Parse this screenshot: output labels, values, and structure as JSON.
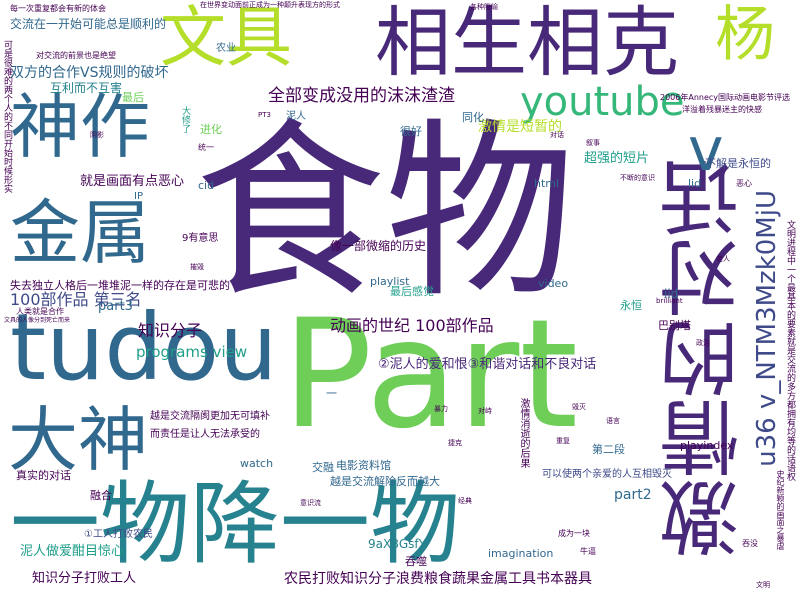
{
  "palette": {
    "background": "#ffffff",
    "dark_purple": "#440154",
    "purple": "#482878",
    "indigo": "#3e4a89",
    "blue": "#31688e",
    "teal": "#26828e",
    "green_teal": "#1f9e89",
    "green": "#35b779",
    "light_green": "#6ece58",
    "yellow_green": "#b5de2b",
    "yellow": "#d8e219"
  },
  "words": {
    "shiwu": "食物",
    "part": "Part",
    "jiqing_de_duihua": "激情的对话",
    "yiwu_xiang_yiwu": "一物降一物",
    "xiangsheng_xiangke": "相生相克",
    "tudou": "tudou",
    "shenzuo": "神作",
    "jinshu": "金属",
    "dashen": "大神",
    "wenju": "文具",
    "yang": "杨",
    "youtube": "youtube",
    "v": "v",
    "u36": "u36 v_NTM3Mzk0MjU",
    "quanbu_bian_cheng": "全部变成没用的沫沫渣渣",
    "jiqing_shi_duanzan": "激情是短暂的",
    "chaoqiang_duanpian": "超强的短片",
    "bujie_yongheng": "不解是永恒的",
    "hezuo_vs_guize": "双方的合作VS规则的破坏",
    "huli_er_buhai": "互利而不互害",
    "jiaoliu_yikaishi": "交流在一开始可能总是顺利的",
    "jiushi_huamian": "就是画面有点恶心",
    "zhishifenzi": "知识分子",
    "baibu_disanming": "100部作品 第三名",
    "part3": "part3",
    "donghua_shiji": "动画的世纪 100部作品",
    "nirenr_aihehen": "②泥人的爱和恨③和谐对话和不良对话",
    "programs_view": "programs view",
    "shiqu_duli_renge": "失去独立人格后一堆堆泥一样的存在是可悲的",
    "xiang_yibu_weisuo": "像一部微缩的历史",
    "nongmin_dabai": "农民打败知识分子浪费粮食蔬果金属工具书本器具",
    "zhishifenzi_dabai": "知识分子打败工人",
    "part2": "part2",
    "yige_qinai": "可以使两个亲爱的人互相毁灭",
    "dianying_ziliaoguan": "电影资料馆",
    "yuejiao_yuejie": "越是交流解除反而越大",
    "nirenzuo_aiyu": "泥人做爱酣目惊心",
    "tunshi": "吞噬",
    "9aX8GsfY": "9aX8GsfY",
    "imagination": "imagination",
    "playindex": "playindex",
    "playlist": "playlist",
    "iid": "iid",
    "lid": "lid",
    "cid": "cid",
    "html": "html",
    "watch": "watch",
    "video": "video",
    "jiaochan": "交融",
    "diererduan": "第二段",
    "babieta": "巴别塔",
    "yongheng": "永恒",
    "zuihou_ganjue": "最后感觉",
    "erqie_shi": "而责任是让人无法承受的",
    "yuexiang_jiaoliu": "越是交流隔阂更加无可填补",
    "tongjing": "同化",
    "henhao": "很好",
    "jinhua": "进化",
    "jiqing_zhuanzhi": "激情消逝的后果",
    "zhenshi_duihua": "真实的对话",
    "ronghe": "融合",
    "cuiyu_ludi": "①工人打败农民",
    "youyiwu": "有意思",
    "jiuge": "9有意思",
    "nongye": "农业",
    "ip": "IP",
    "zuijin": "最后",
    "geyou": "一",
    "xiao_t1": "每一次重复都会有新的体会",
    "xiao_t2": "在世界变动面前正成为一种颠升表现方的形式",
    "xiao_t3": "2006年Annecy国际动画电影节评选",
    "xiao_t4": "洋溢着残暴迷主的快感",
    "xiao_t5": "文明进程中一个最基本的要素就是交流的多方都拥有均等的话语权",
    "xiao_t6": "可是很难的两个人的不同开始时候形实",
    "xiao_t7": "对交流的前景也是绝望",
    "xiao_t8": "文具的人像分到死亡而来",
    "xiao_t9": "人类就是合作",
    "xiao_t10": "各种隐喻",
    "xiao_t11": "成为一块",
    "xiao_t12": "吞没",
    "xiao_t13": "史纪新颖的画面之暴虐",
    "xiao_t14": "不断的意识",
    "xiao_t15": "恶心",
    "xiao_t16": "阴影",
    "xiao_t17": "摧毁",
    "xiao_t18": "暴力",
    "xiao_t19": "重复",
    "xiao_t20": "叙事",
    "xiao_t21": "对话",
    "xiao_t22": "毁灭",
    "xiao_t23": "brilliant",
    "xiao_t24": "PT3",
    "xiao_t25": "泥人",
    "xiao_t26": "统一",
    "xiao_t27": "大修了",
    "xiao_t28": "老人",
    "xiao_t29": "对峙",
    "xiao_t30": "政治",
    "xiao_t31": "语言",
    "xiao_t32": "文明",
    "xiao_t33": "牛逼",
    "xiao_t34": "经典",
    "xiao_t35": "捷克",
    "xiao_t36": "意识流"
  }
}
